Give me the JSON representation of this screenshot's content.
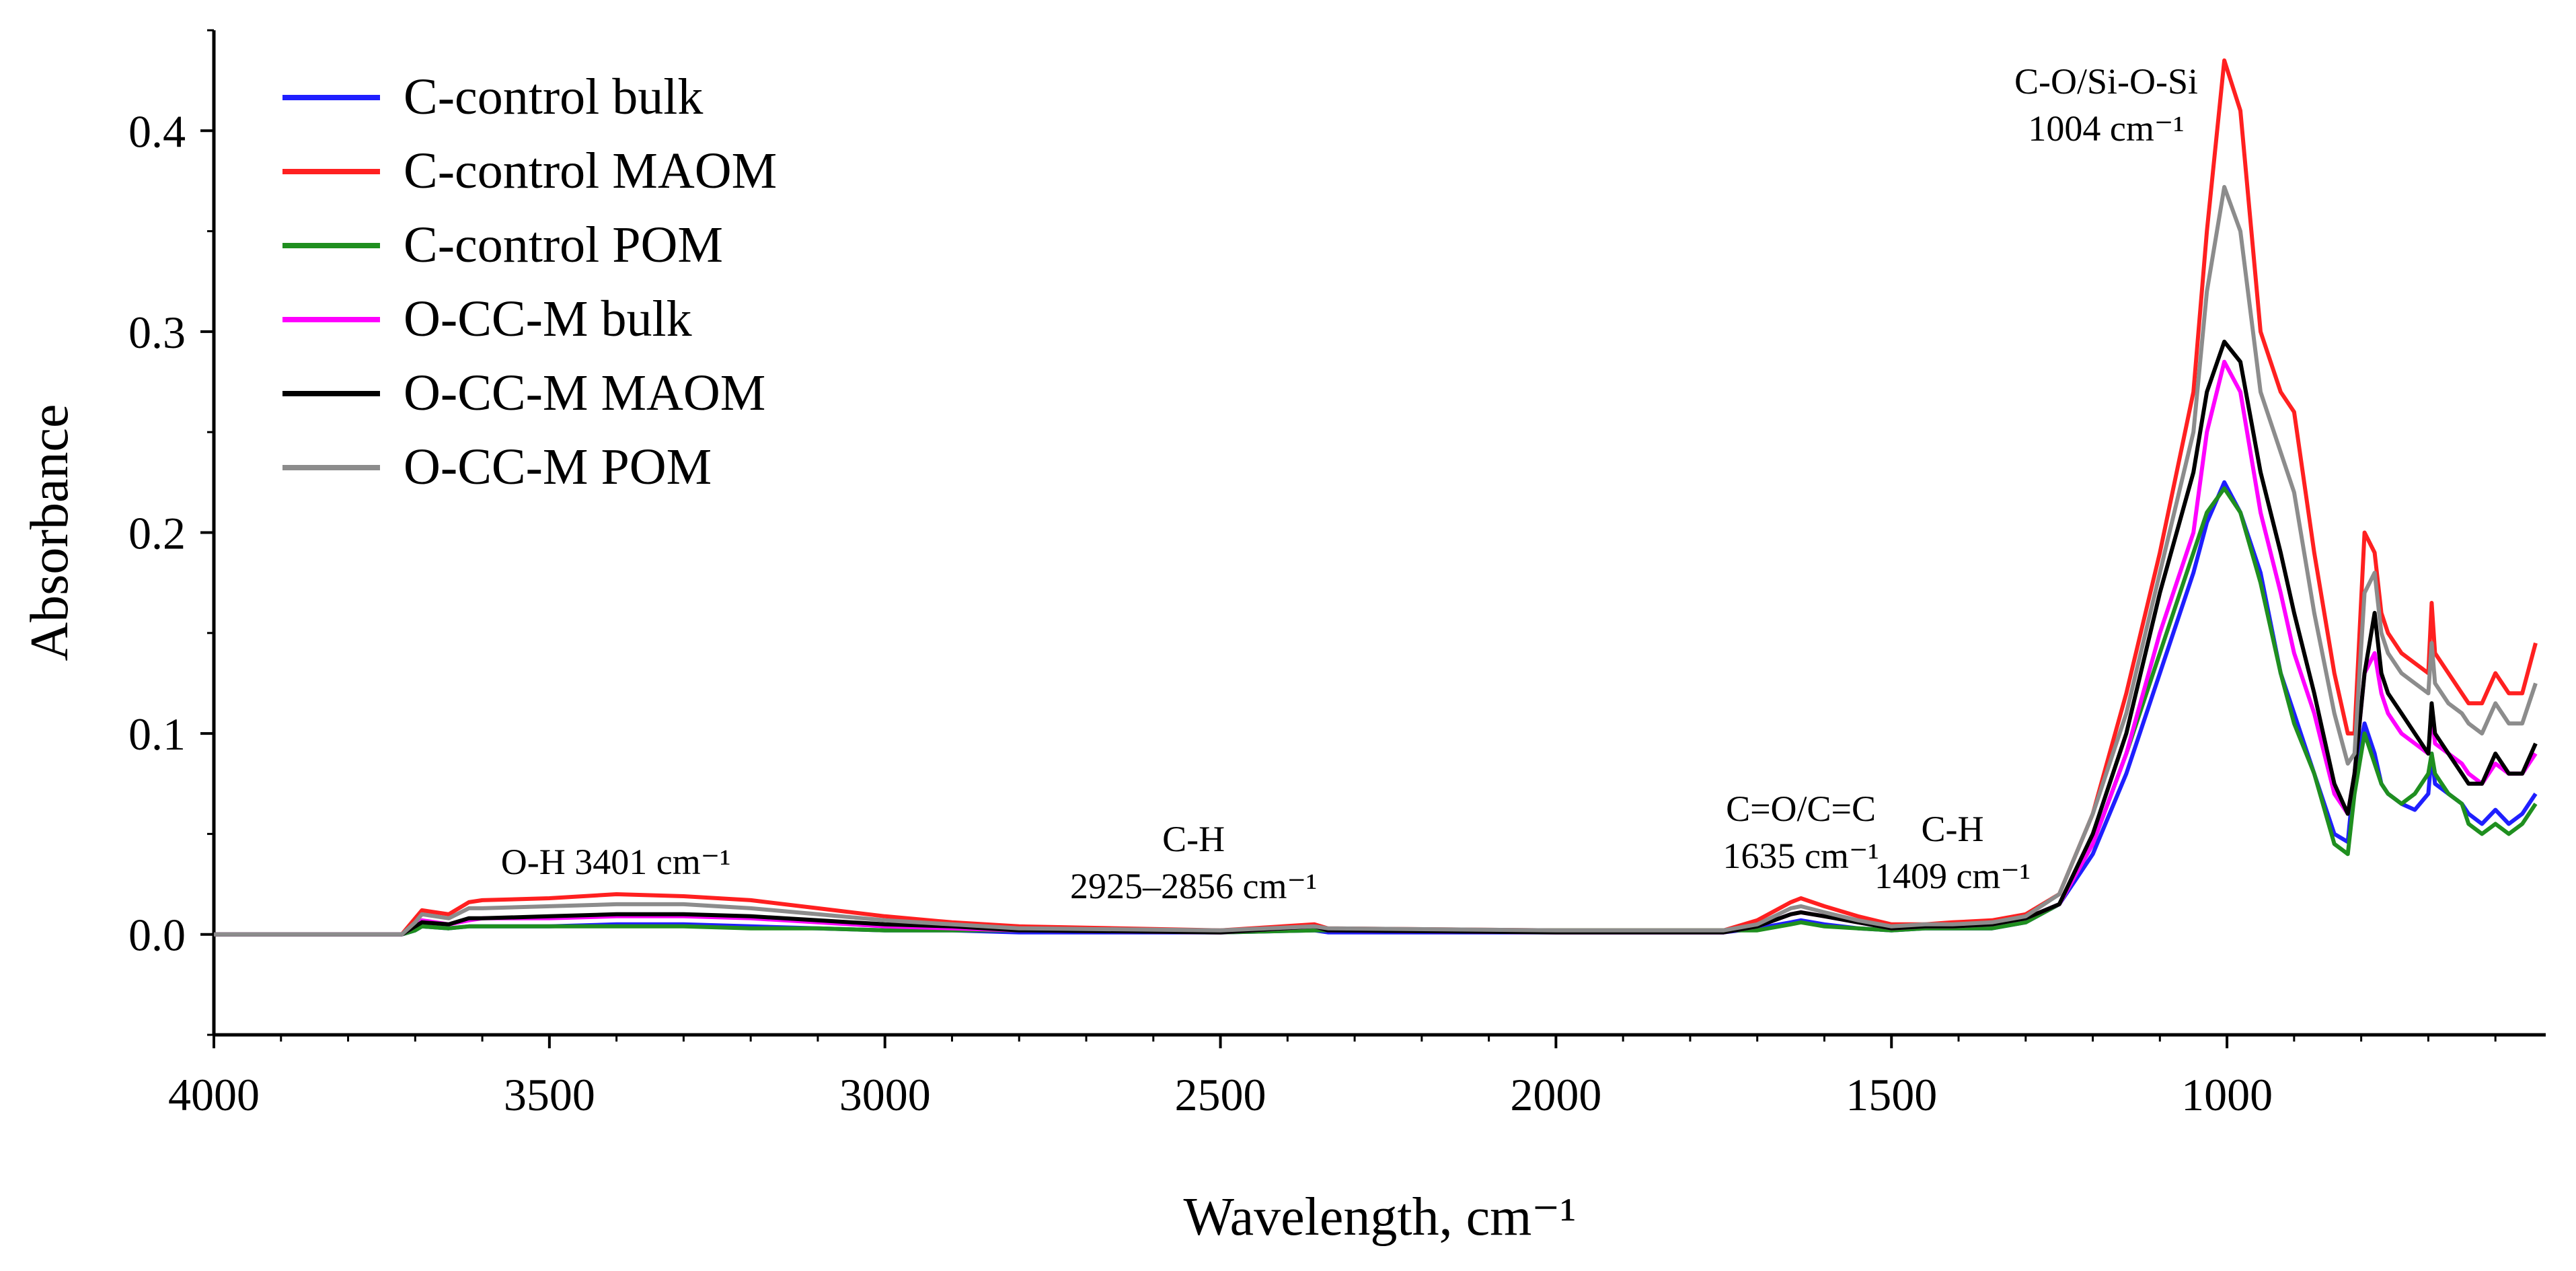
{
  "chart_data": {
    "type": "line",
    "title": "",
    "xlabel": "Wavelength, cm⁻¹",
    "ylabel": "Absorbance",
    "xlim": [
      4000,
      525
    ],
    "ylim": [
      -0.05,
      0.45
    ],
    "xticks": [
      4000,
      3500,
      3000,
      2500,
      2000,
      1500,
      1000
    ],
    "yticks": [
      0.0,
      0.1,
      0.2,
      0.3,
      0.4
    ],
    "ytick_labels": [
      "0.0",
      "0.1",
      "0.2",
      "0.3",
      "0.4"
    ],
    "grid": false,
    "legend_position": "top-left",
    "colors": {
      "C-control bulk": "#1f1fff",
      "C-control MAOM": "#ff2020",
      "C-control POM": "#1f8f1f",
      "O-CC-M bulk": "#ff00ff",
      "O-CC-M MAOM": "#000000",
      "O-CC-M POM": "#8c8c8c"
    },
    "x": [
      4000,
      3720,
      3700,
      3690,
      3650,
      3620,
      3600,
      3500,
      3400,
      3300,
      3200,
      3100,
      3000,
      2900,
      2800,
      2500,
      2360,
      2340,
      2000,
      1750,
      1700,
      1650,
      1635,
      1600,
      1550,
      1500,
      1450,
      1409,
      1350,
      1300,
      1250,
      1200,
      1150,
      1100,
      1050,
      1030,
      1004,
      980,
      950,
      920,
      900,
      870,
      840,
      820,
      810,
      795,
      780,
      770,
      760,
      740,
      720,
      700,
      695,
      690,
      670,
      650,
      640,
      620,
      600,
      580,
      560,
      540
    ],
    "series": [
      {
        "name": "C-control bulk",
        "values": [
          0.0,
          0.0,
          0.002,
          0.004,
          0.003,
          0.004,
          0.004,
          0.004,
          0.005,
          0.005,
          0.004,
          0.003,
          0.002,
          0.002,
          0.001,
          0.001,
          0.002,
          0.001,
          0.001,
          0.001,
          0.003,
          0.006,
          0.007,
          0.005,
          0.003,
          0.002,
          0.003,
          0.003,
          0.003,
          0.006,
          0.015,
          0.04,
          0.08,
          0.13,
          0.18,
          0.205,
          0.225,
          0.21,
          0.18,
          0.13,
          0.11,
          0.08,
          0.05,
          0.046,
          0.08,
          0.105,
          0.09,
          0.075,
          0.07,
          0.065,
          0.062,
          0.07,
          0.09,
          0.075,
          0.07,
          0.065,
          0.06,
          0.055,
          0.062,
          0.055,
          0.06,
          0.07
        ]
      },
      {
        "name": "C-control MAOM",
        "values": [
          0.0,
          0.0,
          0.008,
          0.012,
          0.01,
          0.016,
          0.017,
          0.018,
          0.02,
          0.019,
          0.017,
          0.013,
          0.009,
          0.006,
          0.004,
          0.002,
          0.005,
          0.003,
          0.002,
          0.002,
          0.007,
          0.016,
          0.018,
          0.014,
          0.009,
          0.005,
          0.005,
          0.006,
          0.007,
          0.01,
          0.02,
          0.06,
          0.12,
          0.19,
          0.27,
          0.35,
          0.435,
          0.41,
          0.3,
          0.27,
          0.26,
          0.19,
          0.13,
          0.1,
          0.1,
          0.2,
          0.19,
          0.16,
          0.15,
          0.14,
          0.135,
          0.13,
          0.165,
          0.14,
          0.13,
          0.12,
          0.115,
          0.115,
          0.13,
          0.12,
          0.12,
          0.145
        ]
      },
      {
        "name": "C-control POM",
        "values": [
          0.0,
          0.0,
          0.002,
          0.004,
          0.003,
          0.004,
          0.004,
          0.004,
          0.004,
          0.004,
          0.003,
          0.003,
          0.002,
          0.002,
          0.002,
          0.001,
          0.002,
          0.002,
          0.002,
          0.002,
          0.002,
          0.005,
          0.006,
          0.004,
          0.003,
          0.002,
          0.003,
          0.003,
          0.003,
          0.006,
          0.015,
          0.045,
          0.09,
          0.14,
          0.19,
          0.21,
          0.222,
          0.21,
          0.175,
          0.13,
          0.105,
          0.08,
          0.045,
          0.04,
          0.07,
          0.1,
          0.085,
          0.075,
          0.07,
          0.065,
          0.07,
          0.08,
          0.09,
          0.08,
          0.07,
          0.065,
          0.055,
          0.05,
          0.055,
          0.05,
          0.055,
          0.065
        ]
      },
      {
        "name": "O-CC-M bulk",
        "values": [
          0.0,
          0.0,
          0.004,
          0.007,
          0.005,
          0.007,
          0.008,
          0.008,
          0.009,
          0.009,
          0.008,
          0.006,
          0.004,
          0.003,
          0.002,
          0.001,
          0.004,
          0.002,
          0.001,
          0.001,
          0.004,
          0.01,
          0.011,
          0.009,
          0.006,
          0.003,
          0.004,
          0.004,
          0.005,
          0.008,
          0.015,
          0.045,
          0.09,
          0.15,
          0.2,
          0.25,
          0.285,
          0.27,
          0.21,
          0.17,
          0.14,
          0.11,
          0.07,
          0.06,
          0.08,
          0.13,
          0.14,
          0.12,
          0.11,
          0.1,
          0.095,
          0.09,
          0.11,
          0.095,
          0.09,
          0.085,
          0.08,
          0.075,
          0.085,
          0.08,
          0.08,
          0.09
        ]
      },
      {
        "name": "O-CC-M MAOM",
        "values": [
          0.0,
          0.0,
          0.004,
          0.006,
          0.005,
          0.008,
          0.008,
          0.009,
          0.01,
          0.01,
          0.009,
          0.007,
          0.005,
          0.004,
          0.002,
          0.001,
          0.004,
          0.002,
          0.001,
          0.001,
          0.004,
          0.01,
          0.011,
          0.009,
          0.006,
          0.003,
          0.004,
          0.004,
          0.005,
          0.008,
          0.015,
          0.05,
          0.1,
          0.17,
          0.23,
          0.27,
          0.295,
          0.285,
          0.23,
          0.19,
          0.16,
          0.12,
          0.075,
          0.06,
          0.08,
          0.13,
          0.16,
          0.13,
          0.12,
          0.11,
          0.1,
          0.09,
          0.115,
          0.1,
          0.09,
          0.08,
          0.075,
          0.075,
          0.09,
          0.08,
          0.08,
          0.095
        ]
      },
      {
        "name": "O-CC-M POM",
        "values": [
          0.0,
          0.0,
          0.006,
          0.01,
          0.008,
          0.013,
          0.013,
          0.014,
          0.015,
          0.015,
          0.013,
          0.01,
          0.007,
          0.005,
          0.003,
          0.002,
          0.004,
          0.003,
          0.002,
          0.002,
          0.005,
          0.013,
          0.014,
          0.011,
          0.007,
          0.004,
          0.005,
          0.005,
          0.006,
          0.009,
          0.02,
          0.06,
          0.11,
          0.18,
          0.25,
          0.32,
          0.372,
          0.35,
          0.27,
          0.24,
          0.22,
          0.16,
          0.11,
          0.085,
          0.09,
          0.17,
          0.18,
          0.15,
          0.14,
          0.13,
          0.125,
          0.12,
          0.145,
          0.125,
          0.115,
          0.11,
          0.105,
          0.1,
          0.115,
          0.105,
          0.105,
          0.125
        ]
      }
    ],
    "annotations": [
      {
        "id": "oh",
        "lines": [
          "O-H 3401 cm⁻¹"
        ],
        "x": 3401,
        "y": 0.03
      },
      {
        "id": "ch1",
        "lines": [
          "C-H",
          "2925–2856 cm⁻¹"
        ],
        "x": 2540,
        "y": 0.018
      },
      {
        "id": "co",
        "lines": [
          "C=O/C=C",
          "1635 cm⁻¹"
        ],
        "x": 1635,
        "y": 0.033
      },
      {
        "id": "ch2",
        "lines": [
          "C-H",
          "1409 cm⁻¹"
        ],
        "x": 1409,
        "y": 0.023
      },
      {
        "id": "sio",
        "lines": [
          "C-O/Si-O-Si",
          "1004 cm⁻¹"
        ],
        "x": 1180,
        "y": 0.395
      }
    ]
  }
}
